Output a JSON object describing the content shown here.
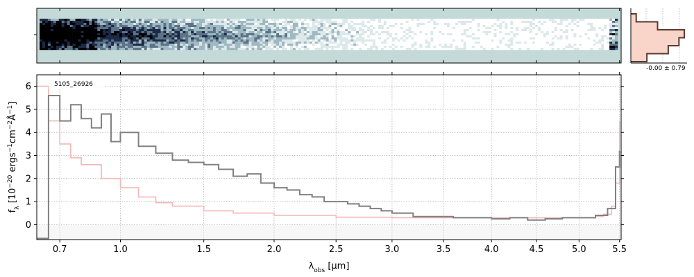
{
  "chart_data": [
    {
      "type": "heatmap",
      "panel": "2d-spectrum",
      "description_hidden": false,
      "background_color": "#c4dad9",
      "colormap": [
        "#ffffff",
        "#dce8ea",
        "#9fb9c2",
        "#5c7488",
        "#1c2a48",
        "#000000"
      ],
      "x_ticks": [
        0.7,
        1.0,
        1.5,
        2.0,
        2.5,
        3.0,
        3.5,
        4.0,
        4.5,
        5.0,
        5.5
      ],
      "xlim": [
        0.6,
        5.52
      ]
    },
    {
      "type": "line",
      "panel": "1d-spectrum",
      "annotation": "5105_26926",
      "xlabel_html": "λ<tspan baseline-shift='sub' font-size='9'>obs</tspan> [μm]",
      "xlabel": "λobs [μm]",
      "ylabel": "fλ [10−20 ergs−1cm−2Å−1]",
      "x_scale": "sqrt",
      "xlim": [
        0.6,
        5.52
      ],
      "ylim": [
        -0.65,
        6.5
      ],
      "x_ticks": [
        0.7,
        1.0,
        1.5,
        2.0,
        2.5,
        3.0,
        3.5,
        4.0,
        4.5,
        5.0,
        5.5
      ],
      "x_tick_labels": [
        "0.7",
        "1.0",
        "1.5",
        "2.0",
        "2.5",
        "3.0",
        "3.5",
        "4.0",
        "4.5",
        "5.0",
        "5.5"
      ],
      "y_ticks": [
        0,
        1,
        2,
        3,
        4,
        5,
        6
      ],
      "y_tick_labels": [
        "0",
        "1",
        "2",
        "3",
        "4",
        "5",
        "6"
      ],
      "grid": true,
      "series": [
        {
          "role": "flux",
          "color": "#808080",
          "x": [
            0.6,
            0.65,
            0.7,
            0.75,
            0.8,
            0.85,
            0.9,
            0.95,
            1.0,
            1.1,
            1.2,
            1.3,
            1.4,
            1.5,
            1.6,
            1.7,
            1.8,
            1.9,
            2.0,
            2.1,
            2.2,
            2.3,
            2.4,
            2.5,
            2.6,
            2.7,
            2.8,
            2.9,
            3.0,
            3.2,
            3.4,
            3.6,
            3.8,
            4.0,
            4.2,
            4.4,
            4.6,
            4.8,
            5.0,
            5.2,
            5.35,
            5.45,
            5.5
          ],
          "y": [
            -0.6,
            5.6,
            4.5,
            5.2,
            4.6,
            4.2,
            4.8,
            3.6,
            4.0,
            3.4,
            3.1,
            2.8,
            2.7,
            2.6,
            2.4,
            2.1,
            2.2,
            1.8,
            1.6,
            1.5,
            1.3,
            1.2,
            1.0,
            1.0,
            0.9,
            0.8,
            0.7,
            0.6,
            0.5,
            0.35,
            0.35,
            0.3,
            0.3,
            0.25,
            0.3,
            0.2,
            0.25,
            0.3,
            0.3,
            0.4,
            0.7,
            2.5,
            3.2
          ]
        },
        {
          "role": "error",
          "color": "#f4b6b6",
          "x": [
            0.6,
            0.65,
            0.7,
            0.75,
            0.8,
            0.9,
            1.0,
            1.1,
            1.2,
            1.3,
            1.5,
            1.7,
            2.0,
            2.5,
            3.0,
            3.5,
            4.0,
            4.5,
            5.0,
            5.2,
            5.3,
            5.4,
            5.45,
            5.5
          ],
          "y": [
            6.0,
            4.5,
            3.5,
            2.9,
            2.6,
            2.0,
            1.6,
            1.2,
            0.95,
            0.8,
            0.6,
            0.5,
            0.4,
            0.32,
            0.3,
            0.3,
            0.3,
            0.3,
            0.3,
            0.35,
            0.45,
            0.8,
            1.8,
            4.5
          ]
        }
      ]
    },
    {
      "type": "histogram",
      "panel": "residual-histogram",
      "annotation": "-0.00 ± 0.79",
      "edge_color": "#5a3a30",
      "fill_color": "#f9d4c8",
      "bins": [
        -3,
        -2,
        -1,
        0,
        1,
        2,
        3
      ],
      "counts": [
        0.1,
        0.5,
        1.0,
        0.9,
        0.7,
        0.3
      ]
    }
  ]
}
